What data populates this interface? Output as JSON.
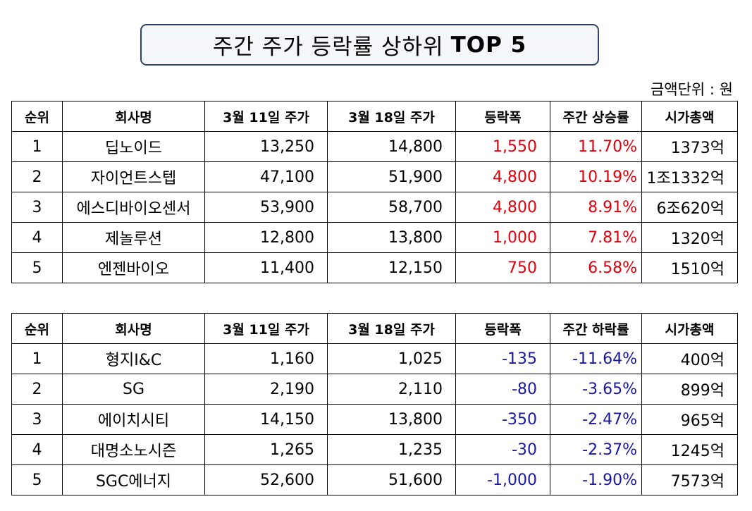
{
  "title": {
    "text": "주간 주가 등락률 상하위",
    "highlight": "TOP 5"
  },
  "unit_label": "금액단위 : 원",
  "colors": {
    "gain": "#e0000b",
    "loss": "#1818a0",
    "title_border": "#2f4468"
  },
  "gainers": {
    "headers": [
      "순위",
      "회사명",
      "3월 11일 주가",
      "3월 18일 주가",
      "등락폭",
      "주간 상승률",
      "시가총액"
    ],
    "rows": [
      [
        "1",
        "딥노이드",
        "13,250",
        "14,800",
        "1,550",
        "11.70%",
        "1373억"
      ],
      [
        "2",
        "자이언트스텝",
        "47,100",
        "51,900",
        "4,800",
        "10.19%",
        "1조1332억"
      ],
      [
        "3",
        "에스디바이오센서",
        "53,900",
        "58,700",
        "4,800",
        "8.91%",
        "6조620억"
      ],
      [
        "4",
        "제놀루션",
        "12,800",
        "13,800",
        "1,000",
        "7.81%",
        "1320억"
      ],
      [
        "5",
        "엔젠바이오",
        "11,400",
        "12,150",
        "750",
        "6.58%",
        "1510억"
      ]
    ]
  },
  "losers": {
    "headers": [
      "순위",
      "회사명",
      "3월 11일 주가",
      "3월 18일 주가",
      "등락폭",
      "주간 하락률",
      "시가총액"
    ],
    "rows": [
      [
        "1",
        "형지I&C",
        "1,160",
        "1,025",
        "-135",
        "-11.64%",
        "400억"
      ],
      [
        "2",
        "SG",
        "2,190",
        "2,110",
        "-80",
        "-3.65%",
        "899억"
      ],
      [
        "3",
        "에이치시티",
        "14,150",
        "13,800",
        "-350",
        "-2.47%",
        "965억"
      ],
      [
        "4",
        "대명소노시즌",
        "1,265",
        "1,235",
        "-30",
        "-2.37%",
        "1245억"
      ],
      [
        "5",
        "SGC에너지",
        "52,600",
        "51,600",
        "-1,000",
        "-1.90%",
        "7573억"
      ]
    ]
  }
}
